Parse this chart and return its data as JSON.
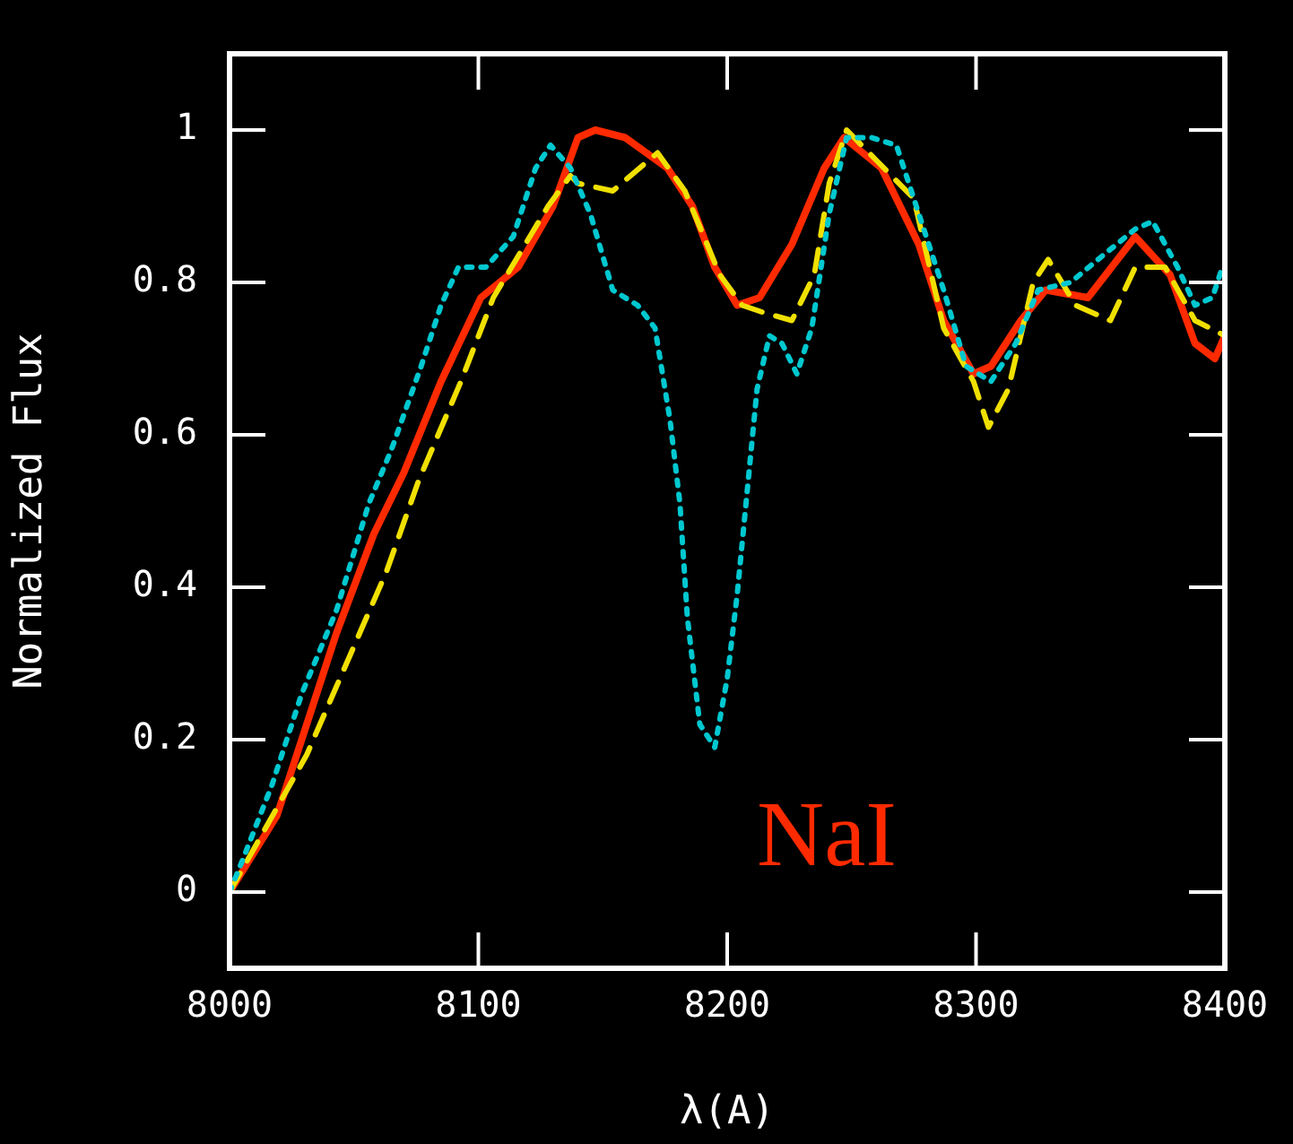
{
  "chart_data": {
    "type": "line",
    "xlabel": "λ(A)",
    "ylabel": "Normalized Flux",
    "xlim": [
      8000,
      8400
    ],
    "xticks": [
      8000,
      8100,
      8200,
      8300,
      8400
    ],
    "ylim": [
      -0.1,
      1.1
    ],
    "yticks": [
      0,
      0.2,
      0.4,
      0.6,
      0.8,
      1
    ],
    "grid": false,
    "legend": false,
    "marker": "none",
    "annotations": [
      "NaI"
    ],
    "series": [
      {
        "color": "#00c8d0",
        "line_style": "dotted",
        "x": [
          8000,
          8005,
          8017,
          8029,
          8043,
          8056,
          8065,
          8077,
          8085,
          8092,
          8103,
          8114,
          8123,
          8129,
          8137,
          8145,
          8154,
          8164,
          8171,
          8177,
          8181,
          8184,
          8189,
          8195,
          8200,
          8204,
          8212,
          8217,
          8222,
          8228,
          8234,
          8241,
          8248,
          8258,
          8268,
          8277,
          8287,
          8296,
          8306,
          8316,
          8325,
          8338,
          8349,
          8364,
          8371,
          8381,
          8388,
          8395,
          8399
        ],
        "values": [
          0,
          0.04,
          0.14,
          0.26,
          0.37,
          0.51,
          0.58,
          0.69,
          0.77,
          0.82,
          0.82,
          0.86,
          0.95,
          0.98,
          0.95,
          0.89,
          0.79,
          0.77,
          0.74,
          0.62,
          0.51,
          0.36,
          0.22,
          0.19,
          0.28,
          0.39,
          0.66,
          0.73,
          0.72,
          0.68,
          0.74,
          0.89,
          0.99,
          0.99,
          0.98,
          0.89,
          0.79,
          0.69,
          0.67,
          0.72,
          0.79,
          0.8,
          0.83,
          0.87,
          0.88,
          0.82,
          0.77,
          0.78,
          0.82
        ]
      },
      {
        "color": "#f0e000",
        "line_style": "dashed",
        "x": [
          8000,
          8031,
          8047,
          8063,
          8076,
          8093,
          8106,
          8128,
          8137,
          8140,
          8154,
          8172,
          8183,
          8197,
          8206,
          8215,
          8226,
          8235,
          8241,
          8248,
          8260,
          8275,
          8287,
          8299,
          8305,
          8313,
          8323,
          8329,
          8340,
          8354,
          8364,
          8376,
          8388,
          8400
        ],
        "values": [
          0,
          0.18,
          0.3,
          0.42,
          0.54,
          0.67,
          0.78,
          0.9,
          0.94,
          0.93,
          0.92,
          0.97,
          0.92,
          0.81,
          0.77,
          0.76,
          0.75,
          0.81,
          0.93,
          1.0,
          0.96,
          0.91,
          0.74,
          0.67,
          0.61,
          0.66,
          0.8,
          0.83,
          0.77,
          0.75,
          0.82,
          0.82,
          0.75,
          0.73
        ]
      },
      {
        "color": "#ff2a00",
        "line_style": "solid",
        "x": [
          8000,
          8019,
          8035,
          8043,
          8058,
          8070,
          8085,
          8101,
          8116,
          8130,
          8140,
          8147,
          8159,
          8176,
          8186,
          8195,
          8204,
          8213,
          8226,
          8239,
          8247,
          8262,
          8277,
          8287,
          8299,
          8306,
          8318,
          8328,
          8345,
          8364,
          8378,
          8388,
          8396,
          8400
        ],
        "values": [
          0,
          0.1,
          0.26,
          0.34,
          0.47,
          0.55,
          0.67,
          0.78,
          0.82,
          0.9,
          0.99,
          1.0,
          0.99,
          0.95,
          0.9,
          0.82,
          0.77,
          0.78,
          0.85,
          0.95,
          0.99,
          0.95,
          0.85,
          0.75,
          0.68,
          0.69,
          0.75,
          0.79,
          0.78,
          0.86,
          0.81,
          0.72,
          0.7,
          0.73
        ]
      }
    ]
  }
}
